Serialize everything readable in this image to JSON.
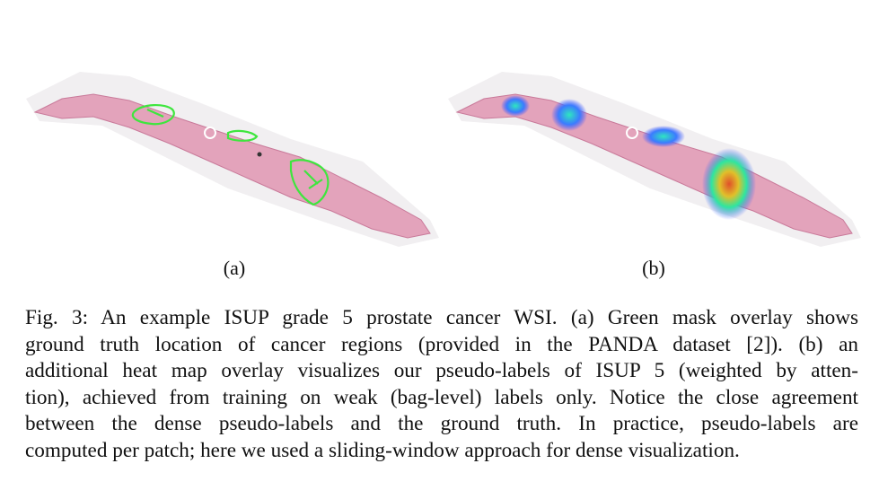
{
  "figure": {
    "panels": [
      {
        "label": "(a)",
        "image": "wsi-green-mask-overlay"
      },
      {
        "label": "(b)",
        "image": "wsi-heatmap-overlay"
      }
    ],
    "caption_lines": [
      "Fig. 3: An example ISUP grade 5 prostate cancer WSI. (a) Green mask overlay shows",
      "ground truth location of cancer regions (provided in the PANDA dataset [2]). (b) an",
      "additional heat map overlay visualizes our pseudo-labels of ISUP 5 (weighted by atten-",
      "tion), achieved from training on weak (bag-level) labels only. Notice the close agreement",
      "between the dense pseudo-labels and the ground truth. In practice, pseudo-labels are",
      "computed per patch; here we used a sliding-window approach for dense visualization."
    ]
  },
  "colors": {
    "tissue": "#e3a3bb",
    "tissue_dark": "#c97a9a",
    "background_slide": "#f1eff1",
    "mask_green": "#3ee63e",
    "heat_low": "#3b4cff",
    "heat_mid": "#2ee6c0",
    "heat_high": "#e0502a"
  }
}
